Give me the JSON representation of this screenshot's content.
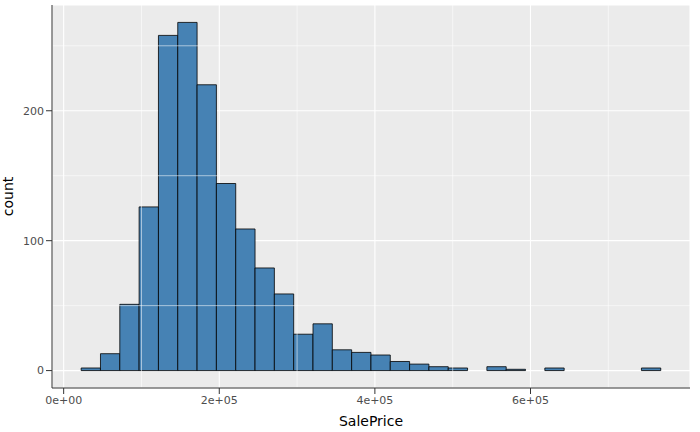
{
  "chart_data": {
    "type": "histogram",
    "x_label": "SalePrice",
    "y_label": "count",
    "bins": [
      22484,
      47315,
      72146,
      96977,
      121808,
      146640,
      171471,
      196302,
      221133,
      245964,
      270795,
      295626,
      320457,
      345288,
      370119,
      394950,
      419781,
      444612,
      469443,
      494274,
      519105,
      543936,
      568767,
      593598,
      618429,
      643260,
      668091,
      692922,
      717753,
      742584,
      767416
    ],
    "counts": [
      2,
      13,
      51,
      126,
      258,
      268,
      220,
      144,
      109,
      79,
      59,
      28,
      36,
      16,
      14,
      12,
      7,
      5,
      3,
      2,
      0,
      3,
      1,
      0,
      2,
      0,
      0,
      0,
      0,
      2
    ],
    "color": "#4682b4",
    "xlim": [
      -15000,
      805000
    ],
    "xticks": [
      {
        "value": 0,
        "label": "0e+00"
      },
      {
        "value": 200000,
        "label": "2e+05"
      },
      {
        "value": 400000,
        "label": "4e+05"
      },
      {
        "value": 600000,
        "label": "6e+05"
      }
    ],
    "ylim": [
      -13.4,
      281.4
    ],
    "yticks": [
      0,
      100,
      200
    ],
    "grid": true
  }
}
